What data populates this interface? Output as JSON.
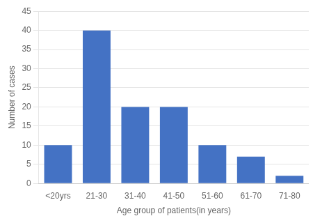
{
  "chart_data": {
    "type": "bar",
    "categories": [
      "<20yrs",
      "21-30",
      "31-40",
      "41-50",
      "51-60",
      "61-70",
      "71-80"
    ],
    "values": [
      10,
      40,
      20,
      20,
      10,
      7,
      2
    ],
    "color": "#4472C4",
    "xlabel": "Age group of patients(in years)",
    "ylabel": "Number of cases",
    "ylim": [
      0,
      45
    ],
    "yticks": [
      0,
      5,
      10,
      15,
      20,
      25,
      30,
      35,
      40,
      45
    ],
    "grid": true
  }
}
